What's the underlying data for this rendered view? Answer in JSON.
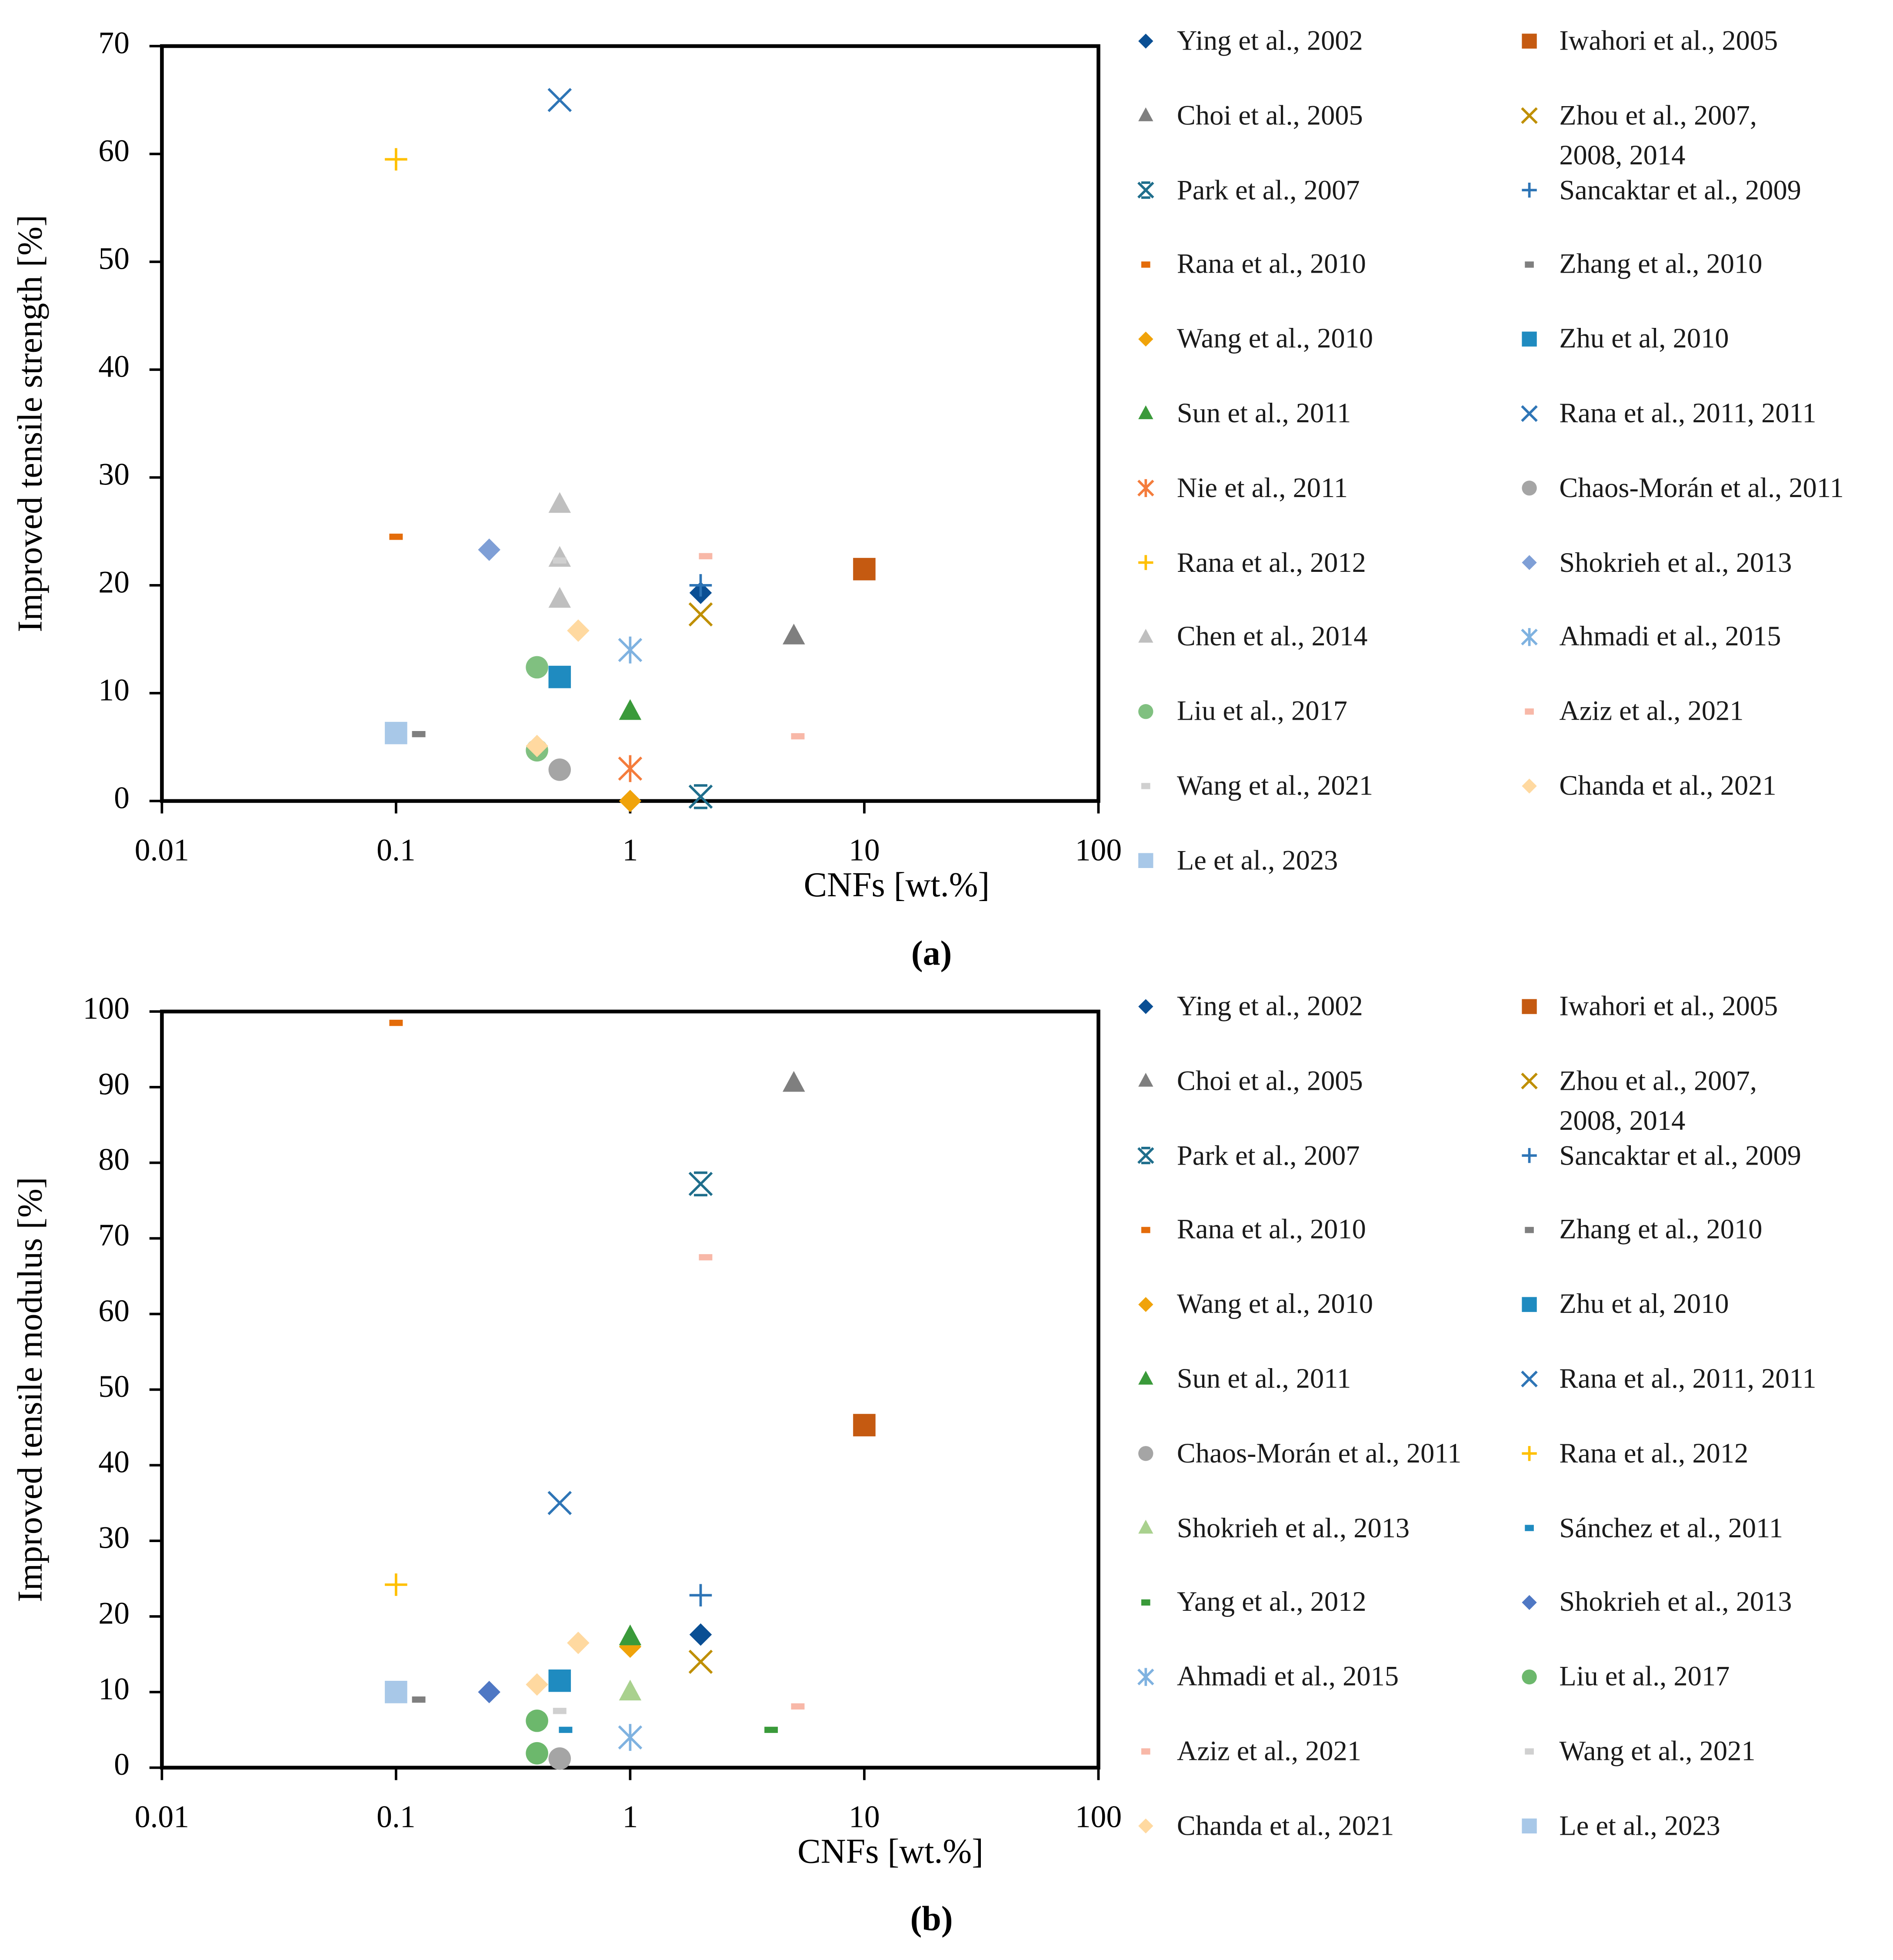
{
  "chart_data": [
    {
      "type": "scatter",
      "caption": "(a)",
      "x_label": "CNFs [wt.%]",
      "y_label": "Improved tensile strength [%]",
      "xscale": "log",
      "xlim": [
        0.01,
        100
      ],
      "xticks": [
        0.01,
        0.1,
        1,
        10,
        100
      ],
      "ylim": [
        0,
        70
      ],
      "yticks": [
        0,
        10,
        20,
        30,
        40,
        50,
        60,
        70
      ],
      "series": [
        {
          "name": "Ying et al., 2002",
          "color": "#0a4f94",
          "marker": "diamond",
          "x": [
            2
          ],
          "values": [
            19.3
          ]
        },
        {
          "name": "Iwahori et al., 2005",
          "color": "#c55a11",
          "marker": "square",
          "x": [
            10
          ],
          "values": [
            21.5
          ]
        },
        {
          "name": "Choi et al., 2005",
          "color": "#7f7f7f",
          "marker": "triangle",
          "x": [
            5
          ],
          "values": [
            15.3
          ]
        },
        {
          "name": "Zhou et al., 2007,\n2008, 2014",
          "color": "#bf8f00",
          "marker": "x",
          "x": [
            2
          ],
          "values": [
            17.3
          ]
        },
        {
          "name": "Park et al., 2007",
          "color": "#1f6e8c",
          "marker": "xbar",
          "x": [
            2
          ],
          "values": [
            0.4
          ]
        },
        {
          "name": "Sancaktar et al., 2009",
          "color": "#2e75b6",
          "marker": "plus",
          "x": [
            2
          ],
          "values": [
            20
          ]
        },
        {
          "name": "Rana et al., 2010",
          "color": "#e46c0a",
          "marker": "dash",
          "x": [
            0.1
          ],
          "values": [
            24.5
          ]
        },
        {
          "name": "Zhang et al., 2010",
          "color": "#7f7f7f",
          "marker": "dash",
          "x": [
            0.125
          ],
          "values": [
            6.2
          ]
        },
        {
          "name": "Wang et al., 2010",
          "color": "#f0a30a",
          "marker": "diamond",
          "x": [
            1
          ],
          "values": [
            0
          ]
        },
        {
          "name": "Zhu et al, 2010",
          "color": "#1f8bc0",
          "marker": "square",
          "x": [
            0.5
          ],
          "values": [
            11.5
          ]
        },
        {
          "name": "Sun et al., 2011",
          "color": "#3a9a3a",
          "marker": "triangle",
          "x": [
            1
          ],
          "values": [
            8.3
          ]
        },
        {
          "name": "Rana et al., 2011, 2011",
          "color": "#2e75b6",
          "marker": "x",
          "x": [
            0.5
          ],
          "values": [
            65
          ]
        },
        {
          "name": "Nie et al., 2011",
          "color": "#f47c3c",
          "marker": "star",
          "x": [
            1
          ],
          "values": [
            3
          ]
        },
        {
          "name": "Chaos-Morán et al., 2011",
          "color": "#a5a5a5",
          "marker": "circle",
          "x": [
            0.5
          ],
          "values": [
            2.9
          ]
        },
        {
          "name": "Rana et al., 2012",
          "color": "#ffc000",
          "marker": "plus",
          "x": [
            0.1
          ],
          "values": [
            59.5
          ]
        },
        {
          "name": "Shokrieh et al., 2013",
          "color": "#7f9fd6",
          "marker": "diamond",
          "x": [
            0.25
          ],
          "values": [
            23.3
          ]
        },
        {
          "name": "Chen et al., 2014",
          "color": "#bfbfbf",
          "marker": "triangle",
          "x": [
            0.5,
            0.5,
            0.5
          ],
          "values": [
            27.5,
            22.5,
            18.7
          ]
        },
        {
          "name": "Ahmadi et al., 2015",
          "color": "#7fb2e0",
          "marker": "star",
          "x": [
            1
          ],
          "values": [
            14
          ]
        },
        {
          "name": "Liu et al., 2017",
          "color": "#80c080",
          "marker": "circle",
          "x": [
            0.4,
            0.4
          ],
          "values": [
            12.4,
            4.7
          ]
        },
        {
          "name": "Aziz et al., 2021",
          "color": "#f8b8a8",
          "marker": "dash",
          "x": [
            2.1,
            5.2
          ],
          "values": [
            22.7,
            6
          ]
        },
        {
          "name": "Wang et al., 2021",
          "color": "#d0d0d0",
          "marker": "dash",
          "x": [
            0.5
          ],
          "values": [
            22.3
          ]
        },
        {
          "name": "Chanda et al., 2021",
          "color": "#ffd9a0",
          "marker": "diamond",
          "x": [
            0.6,
            0.4
          ],
          "values": [
            15.8,
            5.1
          ]
        },
        {
          "name": "Le et al., 2023",
          "color": "#a8c8e8",
          "marker": "square",
          "x": [
            0.1
          ],
          "values": [
            6.3
          ]
        }
      ]
    },
    {
      "type": "scatter",
      "caption": "(b)",
      "x_label": "CNFs [wt.%]",
      "y_label": "Improved tensile modulus [%]",
      "xscale": "log",
      "xlim": [
        0.01,
        100
      ],
      "xticks": [
        0.01,
        0.1,
        1,
        10,
        100
      ],
      "ylim": [
        0,
        100
      ],
      "yticks": [
        0,
        10,
        20,
        30,
        40,
        50,
        60,
        70,
        80,
        90,
        100
      ],
      "series": [
        {
          "name": "Ying et al., 2002",
          "color": "#0a4f94",
          "marker": "diamond",
          "x": [
            2
          ],
          "values": [
            17.6
          ]
        },
        {
          "name": "Iwahori et al., 2005",
          "color": "#c55a11",
          "marker": "square",
          "x": [
            10
          ],
          "values": [
            45.3
          ]
        },
        {
          "name": "Choi et al., 2005",
          "color": "#7f7f7f",
          "marker": "triangle",
          "x": [
            5
          ],
          "values": [
            90.5
          ]
        },
        {
          "name": "Zhou et al., 2007,\n2008, 2014",
          "color": "#bf8f00",
          "marker": "x",
          "x": [
            2
          ],
          "values": [
            14
          ]
        },
        {
          "name": "Park et al., 2007",
          "color": "#1f6e8c",
          "marker": "xbar",
          "x": [
            2
          ],
          "values": [
            77.2
          ]
        },
        {
          "name": "Sancaktar et al., 2009",
          "color": "#2e75b6",
          "marker": "plus",
          "x": [
            2
          ],
          "values": [
            22.8
          ]
        },
        {
          "name": "Rana et al., 2010",
          "color": "#e46c0a",
          "marker": "dash",
          "x": [
            0.1
          ],
          "values": [
            98.5
          ]
        },
        {
          "name": "Zhang et al., 2010",
          "color": "#7f7f7f",
          "marker": "dash",
          "x": [
            0.125
          ],
          "values": [
            9
          ]
        },
        {
          "name": "Wang et al., 2010",
          "color": "#f0a30a",
          "marker": "diamond",
          "x": [
            1
          ],
          "values": [
            16
          ]
        },
        {
          "name": "Zhu et al, 2010",
          "color": "#1f8bc0",
          "marker": "square",
          "x": [
            0.5
          ],
          "values": [
            11.5
          ]
        },
        {
          "name": "Sun et al., 2011",
          "color": "#3a9a3a",
          "marker": "triangle",
          "x": [
            1
          ],
          "values": [
            17.3
          ]
        },
        {
          "name": "Rana et al., 2011, 2011",
          "color": "#2e75b6",
          "marker": "x",
          "x": [
            0.5
          ],
          "values": [
            35
          ]
        },
        {
          "name": "Chaos-Morán et al., 2011",
          "color": "#a5a5a5",
          "marker": "circle",
          "x": [
            0.5
          ],
          "values": [
            1.2
          ]
        },
        {
          "name": "Rana et al., 2012",
          "color": "#ffc000",
          "marker": "plus",
          "x": [
            0.1
          ],
          "values": [
            24.2
          ]
        },
        {
          "name": "Shokrieh et al., 2013",
          "color": "#a9d18e",
          "marker": "triangle",
          "x": [
            1
          ],
          "values": [
            10
          ]
        },
        {
          "name": "Sánchez et al., 2011",
          "color": "#1f8bc0",
          "marker": "dash",
          "x": [
            0.53
          ],
          "values": [
            5
          ]
        },
        {
          "name": "Yang et al., 2012",
          "color": "#3a9a3a",
          "marker": "dash",
          "x": [
            4
          ],
          "values": [
            5
          ]
        },
        {
          "name": "Shokrieh et al., 2013",
          "color": "#4f78c4",
          "marker": "diamond",
          "x": [
            0.25
          ],
          "values": [
            10
          ]
        },
        {
          "name": "Ahmadi et al., 2015",
          "color": "#7fb2e0",
          "marker": "star",
          "x": [
            1
          ],
          "values": [
            4
          ]
        },
        {
          "name": "Liu et al., 2017",
          "color": "#6cb86c",
          "marker": "circle",
          "x": [
            0.4,
            0.4
          ],
          "values": [
            6.2,
            1.9
          ]
        },
        {
          "name": "Aziz et al., 2021",
          "color": "#f8b8a8",
          "marker": "dash",
          "x": [
            2.1,
            5.2
          ],
          "values": [
            67.5,
            8.1
          ]
        },
        {
          "name": "Wang et al., 2021",
          "color": "#d0d0d0",
          "marker": "dash",
          "x": [
            0.5
          ],
          "values": [
            7.5
          ]
        },
        {
          "name": "Chanda et al., 2021",
          "color": "#ffd9a0",
          "marker": "diamond",
          "x": [
            0.6,
            0.4
          ],
          "values": [
            16.5,
            11
          ]
        },
        {
          "name": "Le et al., 2023",
          "color": "#a8c8e8",
          "marker": "square",
          "x": [
            0.1
          ],
          "values": [
            10
          ]
        }
      ]
    }
  ]
}
